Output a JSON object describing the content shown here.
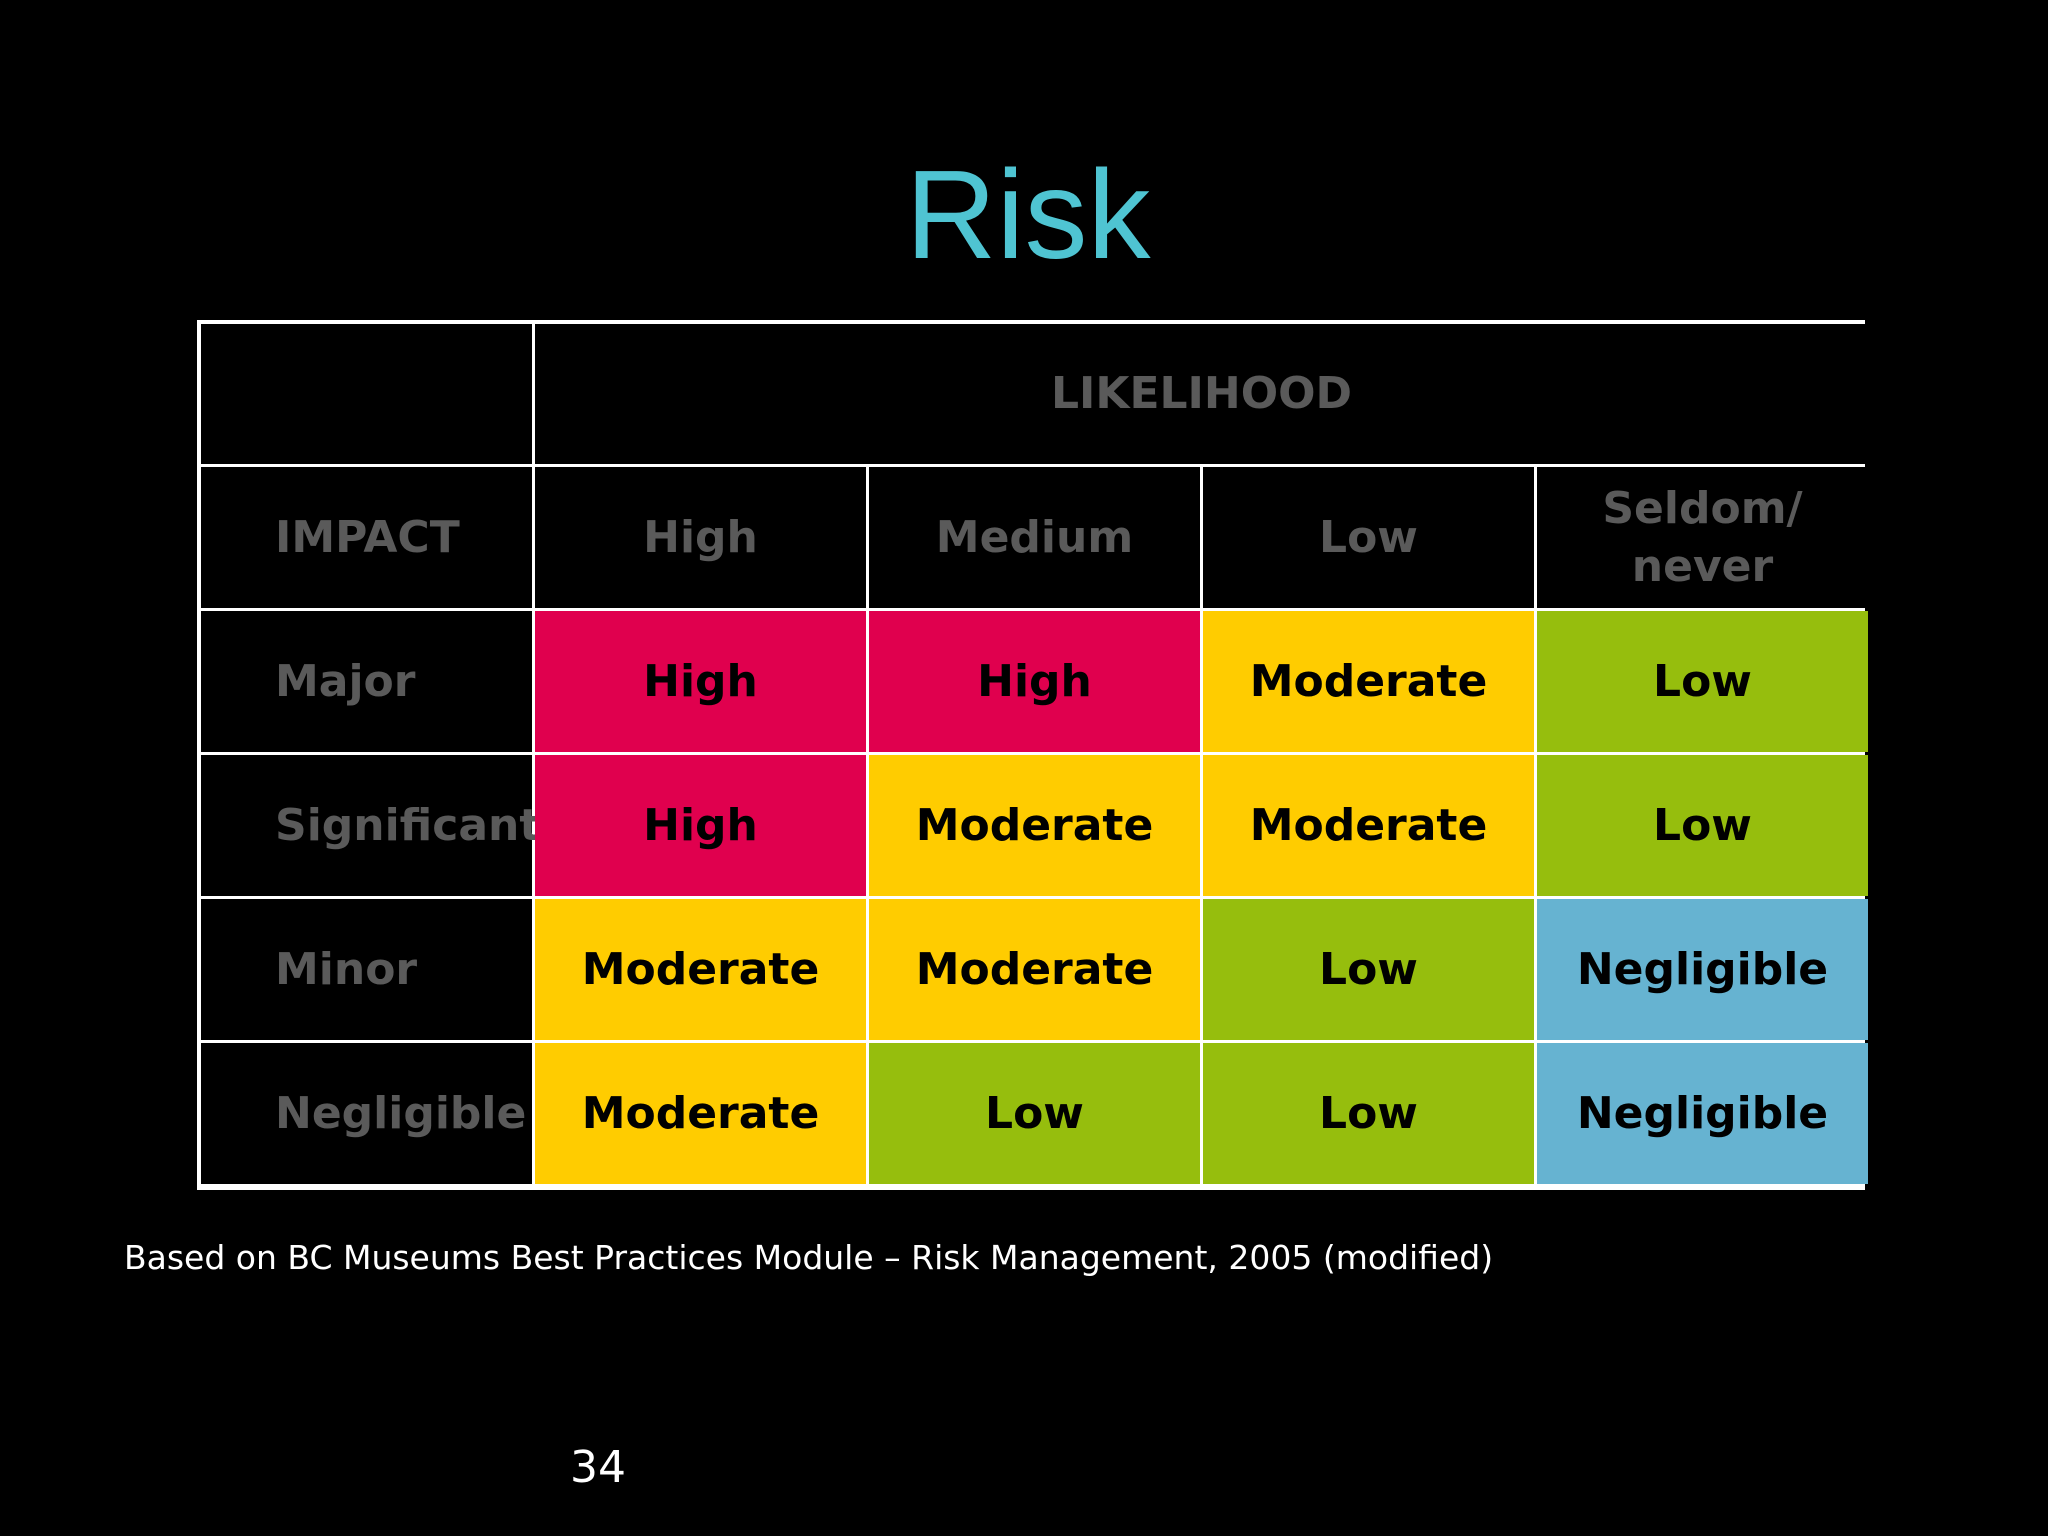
{
  "slide": {
    "title": "Risk",
    "caption": "Based on BC Museums Best Practices Module – Risk Management, 2005 (modified)",
    "page_number": "34"
  },
  "matrix": {
    "likelihood_header": "LIKELIHOOD",
    "impact_header": "IMPACT",
    "likelihood_levels": [
      "High",
      "Medium",
      "Low",
      "Seldom/\nnever"
    ],
    "rows": [
      {
        "impact": "Major",
        "ratings": [
          "High",
          "High",
          "Moderate",
          "Low"
        ]
      },
      {
        "impact": "Significant",
        "ratings": [
          "High",
          "Moderate",
          "Moderate",
          "Low"
        ]
      },
      {
        "impact": "Minor",
        "ratings": [
          "Moderate",
          "Moderate",
          "Low",
          "Negligible"
        ]
      },
      {
        "impact": "Negligible",
        "ratings": [
          "Moderate",
          "Low",
          "Low",
          "Negligible"
        ]
      }
    ]
  },
  "colors": {
    "title": "#4fc4d2",
    "header_text": "#5a5a5a",
    "high": "#e0004e",
    "moderate": "#ffcc00",
    "low": "#96be0d",
    "negligible": "#66b3d1",
    "grid_lines": "#ffffff"
  }
}
